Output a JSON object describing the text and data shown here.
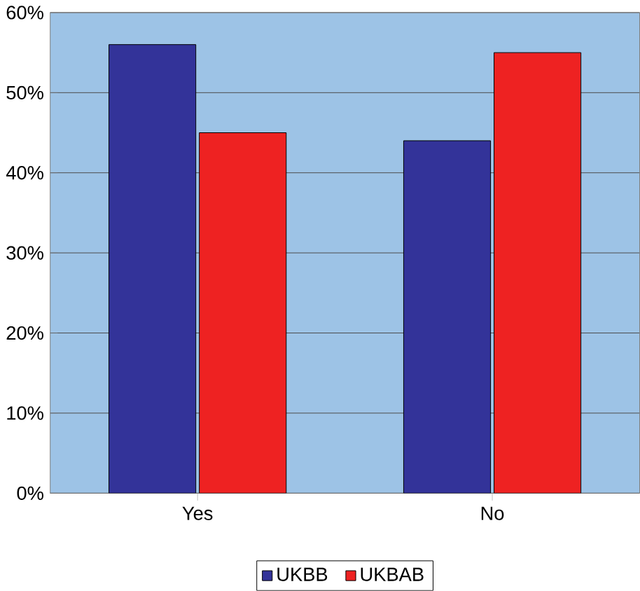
{
  "chart_data": {
    "type": "bar",
    "categories": [
      "Yes",
      "No"
    ],
    "series": [
      {
        "name": "UKBB",
        "color": "#333399",
        "values": [
          56,
          44
        ]
      },
      {
        "name": "UKBAB",
        "color": "#ee2222",
        "values": [
          45,
          55
        ]
      }
    ],
    "ylim": [
      0,
      60
    ],
    "yticks": [
      {
        "value": 0,
        "label": "0%"
      },
      {
        "value": 10,
        "label": "10%"
      },
      {
        "value": 20,
        "label": "20%"
      },
      {
        "value": 30,
        "label": "30%"
      },
      {
        "value": 40,
        "label": "40%"
      },
      {
        "value": 50,
        "label": "50%"
      },
      {
        "value": 60,
        "label": "60%"
      }
    ],
    "grid": "y",
    "legend": "bottom"
  }
}
